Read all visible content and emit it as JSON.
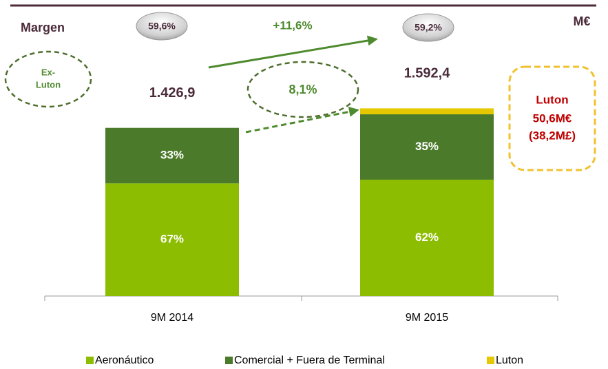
{
  "chart_data": {
    "type": "stacked_bar",
    "categories": [
      "9M 2014",
      "9M 2015"
    ],
    "series": [
      {
        "name": "Aeronáutico",
        "color": "#8cbd00",
        "values": [
          956.0,
          987.3
        ],
        "value_labels": [
          "67%",
          "62%"
        ]
      },
      {
        "name": "Comercial + Fuera de Terminal",
        "color": "#4a7a2a",
        "values": [
          470.9,
          554.5
        ],
        "value_labels": [
          "33%",
          "35%"
        ]
      },
      {
        "name": "Luton",
        "color": "#e6c800",
        "values": [
          null,
          50.6
        ],
        "value_labels": [
          null,
          null
        ]
      }
    ],
    "totals": [
      1426.9,
      1592.4
    ],
    "total_labels": [
      "1.426,9",
      "1.592,4"
    ],
    "annotations": {
      "margin_title": "Margen",
      "margin_2014": "59,6%",
      "margin_2015": "59,2%",
      "growth": "+11,6%",
      "ex_luton_line1": "Ex-",
      "ex_luton_line2": "Luton",
      "ex_luton_growth": "8,1%",
      "luton_title": "Luton",
      "luton_eur": "50,6M€",
      "luton_gbp": "(38,2M£)",
      "unit": "M€"
    }
  }
}
